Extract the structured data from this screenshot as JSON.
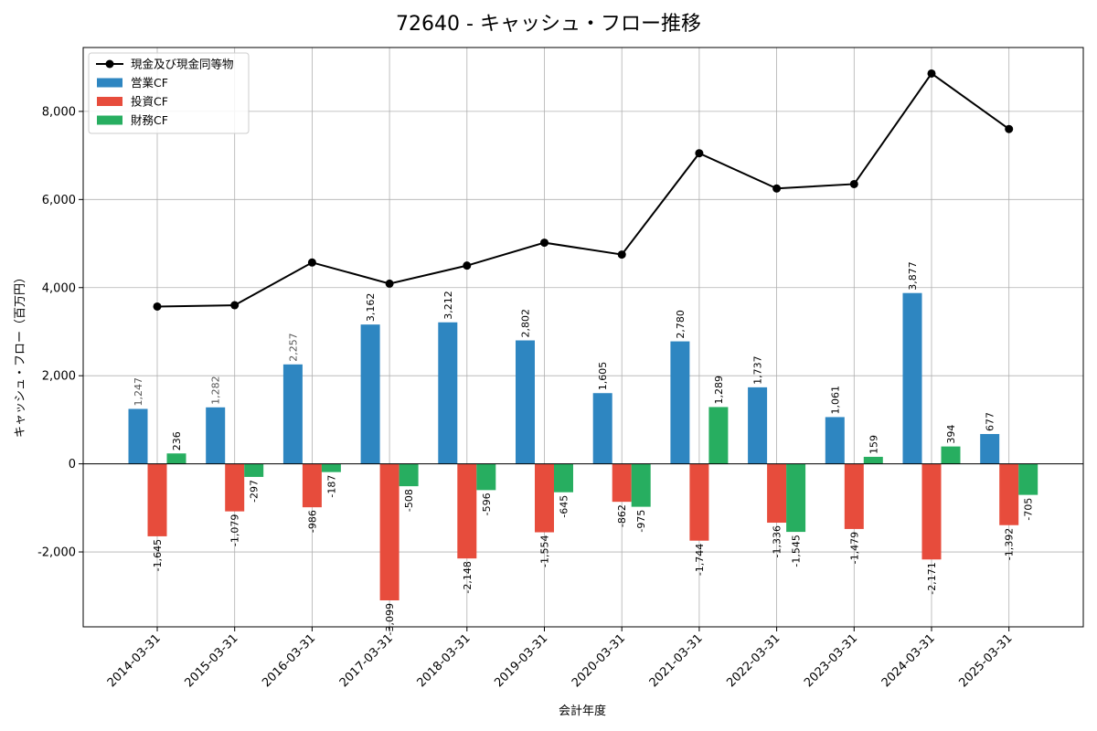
{
  "chart_data": {
    "type": "bar",
    "title": "72640 - キャッシュ・フロー推移",
    "xlabel": "会計年度",
    "ylabel": "キャッシュ・フロー（百万円）",
    "ylim": [
      -3700,
      9450
    ],
    "yticks": [
      -2000,
      0,
      2000,
      4000,
      6000,
      8000
    ],
    "ytick_labels": [
      "-2,000",
      "0",
      "2,000",
      "4,000",
      "6,000",
      "8,000"
    ],
    "grid": true,
    "legend_position": "top-left",
    "categories": [
      "2014-03-31",
      "2015-03-31",
      "2016-03-31",
      "2017-03-31",
      "2018-03-31",
      "2019-03-31",
      "2020-03-31",
      "2021-03-31",
      "2022-03-31",
      "2023-03-31",
      "2024-03-31",
      "2025-03-31"
    ],
    "series": [
      {
        "name": "営業CF",
        "kind": "bar",
        "color": "#2e86c1",
        "values": [
          1247,
          1282,
          2257,
          3162,
          3212,
          2802,
          1605,
          2780,
          1737,
          1061,
          3877,
          677
        ],
        "labels": [
          "1,247",
          "1,282",
          "2,257",
          "3,162",
          "3,212",
          "2,802",
          "1,605",
          "2,780",
          "1,737",
          "1,061",
          "3,877",
          "677"
        ]
      },
      {
        "name": "投資CF",
        "kind": "bar",
        "color": "#e74c3c",
        "values": [
          -1645,
          -1079,
          -986,
          -3099,
          -2148,
          -1554,
          -862,
          -1744,
          -1336,
          -1479,
          -2171,
          -1392
        ],
        "labels": [
          "-1,645",
          "-1,079",
          "-986",
          "-3,099",
          "-2,148",
          "-1,554",
          "-862",
          "-1,744",
          "-1,336",
          "-1,479",
          "-2,171",
          "-1,392"
        ]
      },
      {
        "name": "財務CF",
        "kind": "bar",
        "color": "#27ae60",
        "values": [
          236,
          -297,
          -187,
          -508,
          -596,
          -645,
          -975,
          1289,
          -1545,
          159,
          394,
          -705
        ],
        "labels": [
          "236",
          "-297",
          "-187",
          "-508",
          "-596",
          "-645",
          "-975",
          "1,289",
          "-1,545",
          "159",
          "394",
          "-705"
        ]
      },
      {
        "name": "現金及び現金同等物",
        "kind": "line",
        "color": "#000000",
        "values": [
          3570,
          3600,
          4570,
          4090,
          4500,
          5020,
          4750,
          7050,
          6250,
          6350,
          8860,
          7600
        ]
      }
    ]
  }
}
